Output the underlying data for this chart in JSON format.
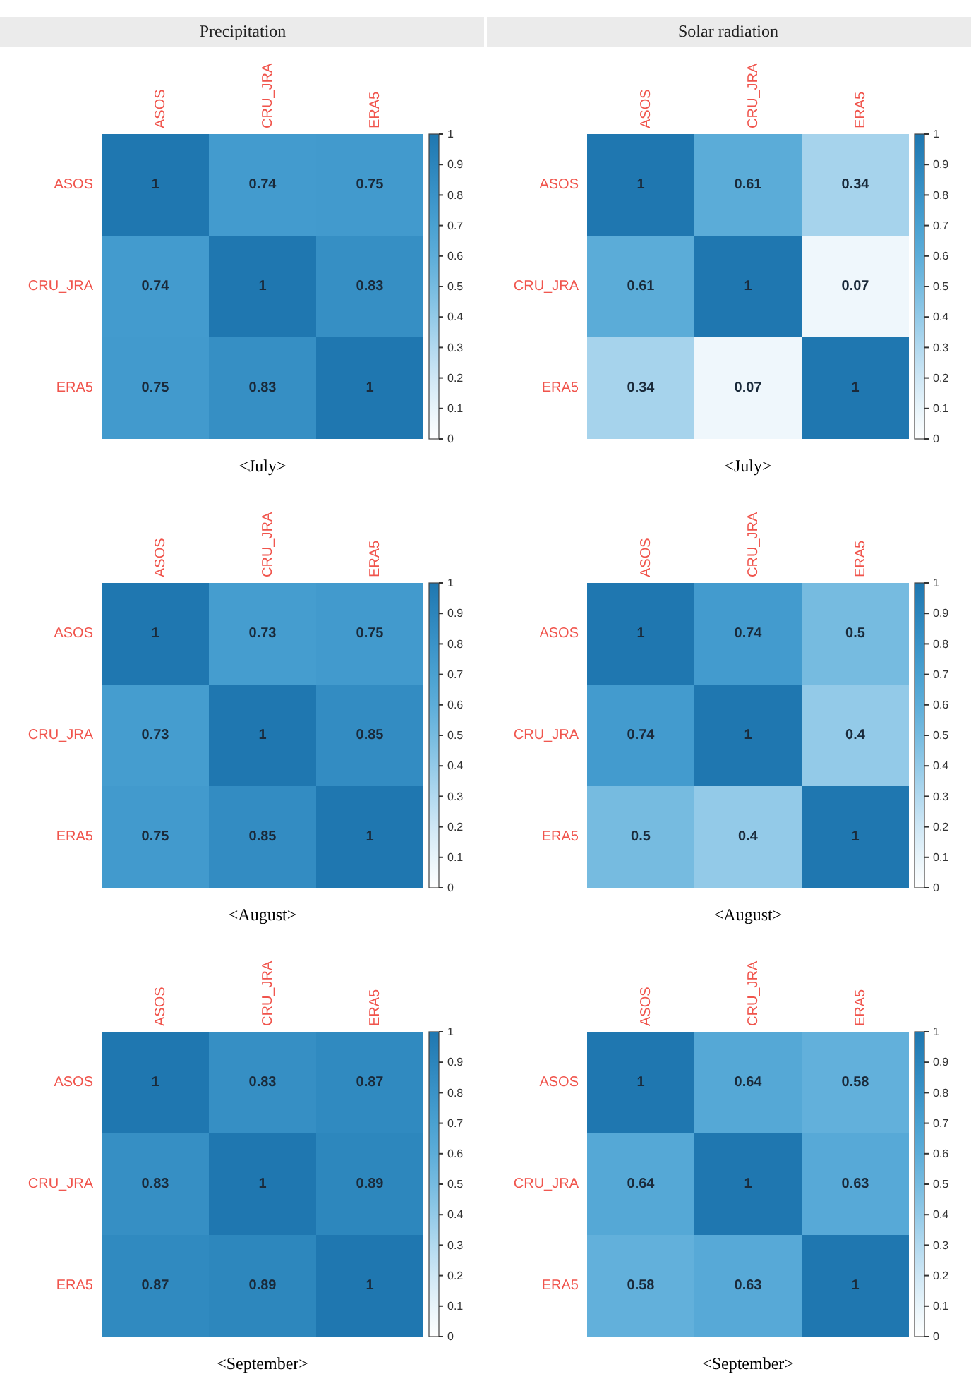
{
  "chart_data": [
    {
      "type": "heatmap",
      "title": "Precipitation",
      "xlabel": "<July>",
      "categories": [
        "ASOS",
        "CRU_JRA",
        "ERA5"
      ],
      "y_categories": [
        "ASOS",
        "CRU_JRA",
        "ERA5"
      ],
      "cells": [
        [
          1,
          0.74,
          0.75
        ],
        [
          0.74,
          1,
          0.83
        ],
        [
          0.75,
          0.83,
          1
        ]
      ],
      "clim": [
        0,
        1
      ],
      "cticks": [
        0,
        0.1,
        0.2,
        0.3,
        0.4,
        0.5,
        0.6,
        0.7,
        0.8,
        0.9,
        1
      ],
      "data_labels": true
    },
    {
      "type": "heatmap",
      "title": "Solar radiation",
      "xlabel": "<July>",
      "categories": [
        "ASOS",
        "CRU_JRA",
        "ERA5"
      ],
      "y_categories": [
        "ASOS",
        "CRU_JRA",
        "ERA5"
      ],
      "cells": [
        [
          1,
          0.61,
          0.34
        ],
        [
          0.61,
          1,
          0.07
        ],
        [
          0.34,
          0.07,
          1
        ]
      ],
      "clim": [
        0,
        1
      ],
      "cticks": [
        0,
        0.1,
        0.2,
        0.3,
        0.4,
        0.5,
        0.6,
        0.7,
        0.8,
        0.9,
        1
      ],
      "data_labels": true
    },
    {
      "type": "heatmap",
      "xlabel": "<August>",
      "categories": [
        "ASOS",
        "CRU_JRA",
        "ERA5"
      ],
      "y_categories": [
        "ASOS",
        "CRU_JRA",
        "ERA5"
      ],
      "cells": [
        [
          1,
          0.73,
          0.75
        ],
        [
          0.73,
          1,
          0.85
        ],
        [
          0.75,
          0.85,
          1
        ]
      ],
      "clim": [
        0,
        1
      ],
      "cticks": [
        0,
        0.1,
        0.2,
        0.3,
        0.4,
        0.5,
        0.6,
        0.7,
        0.8,
        0.9,
        1
      ],
      "data_labels": true
    },
    {
      "type": "heatmap",
      "xlabel": "<August>",
      "categories": [
        "ASOS",
        "CRU_JRA",
        "ERA5"
      ],
      "y_categories": [
        "ASOS",
        "CRU_JRA",
        "ERA5"
      ],
      "cells": [
        [
          1,
          0.74,
          0.5
        ],
        [
          0.74,
          1,
          0.4
        ],
        [
          0.5,
          0.4,
          1
        ]
      ],
      "clim": [
        0,
        1
      ],
      "cticks": [
        0,
        0.1,
        0.2,
        0.3,
        0.4,
        0.5,
        0.6,
        0.7,
        0.8,
        0.9,
        1
      ],
      "data_labels": true
    },
    {
      "type": "heatmap",
      "xlabel": "<September>",
      "categories": [
        "ASOS",
        "CRU_JRA",
        "ERA5"
      ],
      "y_categories": [
        "ASOS",
        "CRU_JRA",
        "ERA5"
      ],
      "cells": [
        [
          1,
          0.83,
          0.87
        ],
        [
          0.83,
          1,
          0.89
        ],
        [
          0.87,
          0.89,
          1
        ]
      ],
      "clim": [
        0,
        1
      ],
      "cticks": [
        0,
        0.1,
        0.2,
        0.3,
        0.4,
        0.5,
        0.6,
        0.7,
        0.8,
        0.9,
        1
      ],
      "data_labels": true
    },
    {
      "type": "heatmap",
      "xlabel": "<September>",
      "categories": [
        "ASOS",
        "CRU_JRA",
        "ERA5"
      ],
      "y_categories": [
        "ASOS",
        "CRU_JRA",
        "ERA5"
      ],
      "cells": [
        [
          1,
          0.64,
          0.58
        ],
        [
          0.64,
          1,
          0.63
        ],
        [
          0.58,
          0.63,
          1
        ]
      ],
      "clim": [
        0,
        1
      ],
      "cticks": [
        0,
        0.1,
        0.2,
        0.3,
        0.4,
        0.5,
        0.6,
        0.7,
        0.8,
        0.9,
        1
      ],
      "data_labels": true
    }
  ]
}
